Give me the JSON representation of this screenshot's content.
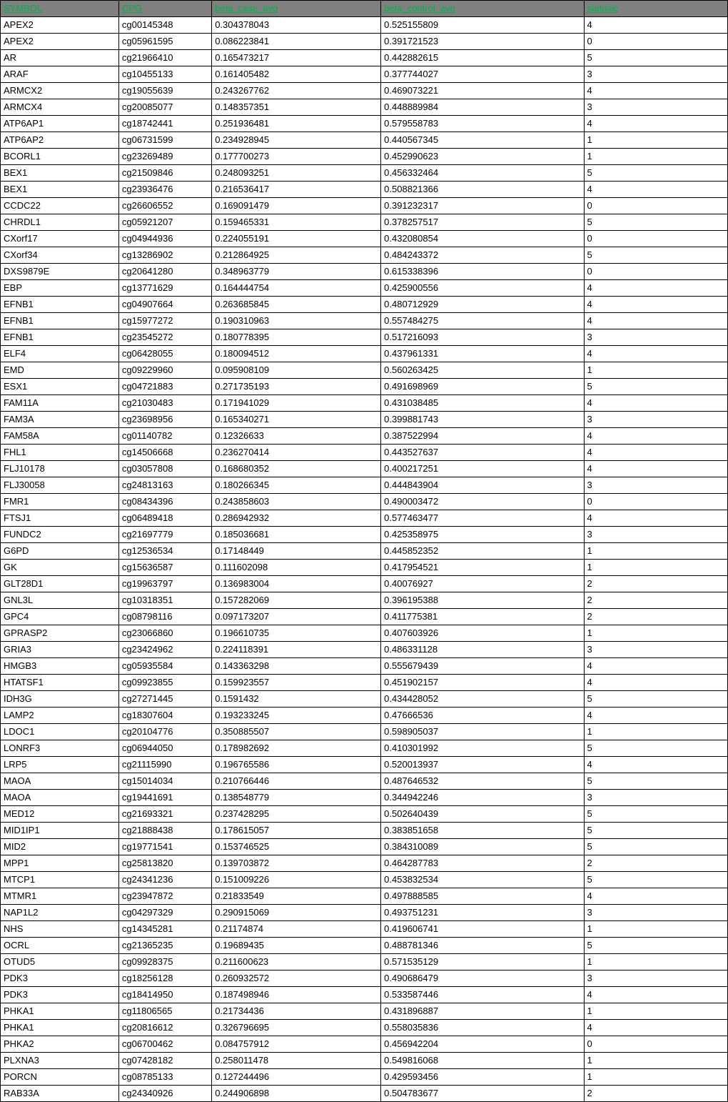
{
  "table": {
    "headers": [
      "SYMBOL",
      "CPG",
      "beta_case_avg",
      "beta_control_avg",
      "statistic"
    ],
    "rows": [
      [
        "APEX2",
        "cg00145348",
        "0.304378043",
        "0.525155809",
        "4"
      ],
      [
        "APEX2",
        "cg05961595",
        "0.086223841",
        "0.391721523",
        "0"
      ],
      [
        "AR",
        "cg21966410",
        "0.165473217",
        "0.442882615",
        "5"
      ],
      [
        "ARAF",
        "cg10455133",
        "0.161405482",
        "0.377744027",
        "3"
      ],
      [
        "ARMCX2",
        "cg19055639",
        "0.243267762",
        "0.469073221",
        "4"
      ],
      [
        "ARMCX4",
        "cg20085077",
        "0.148357351",
        "0.448889984",
        "3"
      ],
      [
        "ATP6AP1",
        "cg18742441",
        "0.251936481",
        "0.579558783",
        "4"
      ],
      [
        "ATP6AP2",
        "cg06731599",
        "0.234928945",
        "0.440567345",
        "1"
      ],
      [
        "BCORL1",
        "cg23269489",
        "0.177700273",
        "0.452990623",
        "1"
      ],
      [
        "BEX1",
        "cg21509846",
        "0.248093251",
        "0.456332464",
        "5"
      ],
      [
        "BEX1",
        "cg23936476",
        "0.216536417",
        "0.508821366",
        "4"
      ],
      [
        "CCDC22",
        "cg26606552",
        "0.169091479",
        "0.391232317",
        "0"
      ],
      [
        "CHRDL1",
        "cg05921207",
        "0.159465331",
        "0.378257517",
        "5"
      ],
      [
        "CXorf17",
        "cg04944936",
        "0.224055191",
        "0.432080854",
        "0"
      ],
      [
        "CXorf34",
        "cg13286902",
        "0.212864925",
        "0.484243372",
        "5"
      ],
      [
        "DXS9879E",
        "cg20641280",
        "0.348963779",
        "0.615338396",
        "0"
      ],
      [
        "EBP",
        "cg13771629",
        "0.164444754",
        "0.425900556",
        "4"
      ],
      [
        "EFNB1",
        "cg04907664",
        "0.263685845",
        "0.480712929",
        "4"
      ],
      [
        "EFNB1",
        "cg15977272",
        "0.190310963",
        "0.557484275",
        "4"
      ],
      [
        "EFNB1",
        "cg23545272",
        "0.180778395",
        "0.517216093",
        "3"
      ],
      [
        "ELF4",
        "cg06428055",
        "0.180094512",
        "0.437961331",
        "4"
      ],
      [
        "EMD",
        "cg09229960",
        "0.095908109",
        "0.560263425",
        "1"
      ],
      [
        "ESX1",
        "cg04721883",
        "0.271735193",
        "0.491698969",
        "5"
      ],
      [
        "FAM11A",
        "cg21030483",
        "0.171941029",
        "0.431038485",
        "4"
      ],
      [
        "FAM3A",
        "cg23698956",
        "0.165340271",
        "0.399881743",
        "3"
      ],
      [
        "FAM58A",
        "cg01140782",
        "0.12326633",
        "0.387522994",
        "4"
      ],
      [
        "FHL1",
        "cg14506668",
        "0.236270414",
        "0.443527637",
        "4"
      ],
      [
        "FLJ10178",
        "cg03057808",
        "0.168680352",
        "0.400217251",
        "4"
      ],
      [
        "FLJ30058",
        "cg24813163",
        "0.180266345",
        "0.444843904",
        "3"
      ],
      [
        "FMR1",
        "cg08434396",
        "0.243858603",
        "0.490003472",
        "0"
      ],
      [
        "FTSJ1",
        "cg06489418",
        "0.286942932",
        "0.577463477",
        "4"
      ],
      [
        "FUNDC2",
        "cg21697779",
        "0.185036681",
        "0.425358975",
        "3"
      ],
      [
        "G6PD",
        "cg12536534",
        "0.17148449",
        "0.445852352",
        "1"
      ],
      [
        "GK",
        "cg15636587",
        "0.111602098",
        "0.417954521",
        "1"
      ],
      [
        "GLT28D1",
        "cg19963797",
        "0.136983004",
        "0.40076927",
        "2"
      ],
      [
        "GNL3L",
        "cg10318351",
        "0.157282069",
        "0.396195388",
        "2"
      ],
      [
        "GPC4",
        "cg08798116",
        "0.097173207",
        "0.411775381",
        "2"
      ],
      [
        "GPRASP2",
        "cg23066860",
        "0.196610735",
        "0.407603926",
        "1"
      ],
      [
        "GRIA3",
        "cg23424962",
        "0.224118391",
        "0.486331128",
        "3"
      ],
      [
        "HMGB3",
        "cg05935584",
        "0.143363298",
        "0.555679439",
        "4"
      ],
      [
        "HTATSF1",
        "cg09923855",
        "0.159923557",
        "0.451902157",
        "4"
      ],
      [
        "IDH3G",
        "cg27271445",
        "0.1591432",
        "0.434428052",
        "5"
      ],
      [
        "LAMP2",
        "cg18307604",
        "0.193233245",
        "0.47666536",
        "4"
      ],
      [
        "LDOC1",
        "cg20104776",
        "0.350885507",
        "0.598905037",
        "1"
      ],
      [
        "LONRF3",
        "cg06944050",
        "0.178982692",
        "0.410301992",
        "5"
      ],
      [
        "LRP5",
        "cg21115990",
        "0.196765586",
        "0.520013937",
        "4"
      ],
      [
        "MAOA",
        "cg15014034",
        "0.210766446",
        "0.487646532",
        "5"
      ],
      [
        "MAOA",
        "cg19441691",
        "0.138548779",
        "0.344942246",
        "3"
      ],
      [
        "MED12",
        "cg21693321",
        "0.237428295",
        "0.502640439",
        "5"
      ],
      [
        "MID1IP1",
        "cg21888438",
        "0.178615057",
        "0.383851658",
        "5"
      ],
      [
        "MID2",
        "cg19771541",
        "0.153746525",
        "0.384310089",
        "5"
      ],
      [
        "MPP1",
        "cg25813820",
        "0.139703872",
        "0.464287783",
        "2"
      ],
      [
        "MTCP1",
        "cg24341236",
        "0.151009226",
        "0.453832534",
        "5"
      ],
      [
        "MTMR1",
        "cg23947872",
        "0.21833549",
        "0.497888585",
        "4"
      ],
      [
        "NAP1L2",
        "cg04297329",
        "0.290915069",
        "0.493751231",
        "3"
      ],
      [
        "NHS",
        "cg14345281",
        "0.21174874",
        "0.419606741",
        "1"
      ],
      [
        "OCRL",
        "cg21365235",
        "0.19689435",
        "0.488781346",
        "5"
      ],
      [
        "OTUD5",
        "cg09928375",
        "0.211600623",
        "0.571535129",
        "1"
      ],
      [
        "PDK3",
        "cg18256128",
        "0.260932572",
        "0.490686479",
        "3"
      ],
      [
        "PDK3",
        "cg18414950",
        "0.187498946",
        "0.533587446",
        "4"
      ],
      [
        "PHKA1",
        "cg11806565",
        "0.21734436",
        "0.431896887",
        "1"
      ],
      [
        "PHKA1",
        "cg20816612",
        "0.326796695",
        "0.558035836",
        "4"
      ],
      [
        "PHKA2",
        "cg06700462",
        "0.084757912",
        "0.456942204",
        "0"
      ],
      [
        "PLXNA3",
        "cg07428182",
        "0.258011478",
        "0.549816068",
        "1"
      ],
      [
        "PORCN",
        "cg08785133",
        "0.127244496",
        "0.429593456",
        "1"
      ],
      [
        "RAB33A",
        "cg24340926",
        "0.244906898",
        "0.504783677",
        "2"
      ]
    ],
    "header_bg_color": "#808080",
    "header_text_color": "#00b050",
    "border_color": "#000000",
    "cell_text_color": "#000000"
  }
}
